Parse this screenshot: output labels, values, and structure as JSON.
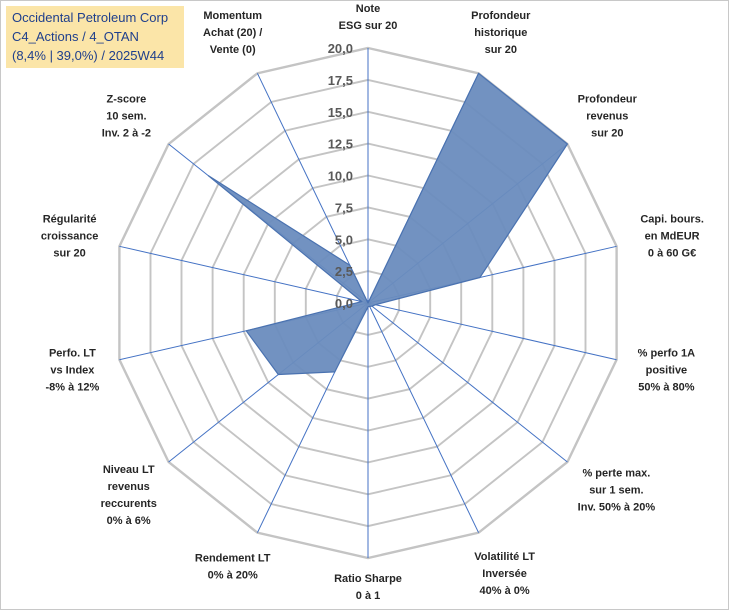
{
  "header": {
    "line1": "Occidental Petroleum Corp",
    "line2": "C4_Actions / 4_OTAN",
    "line3": "(8,4% | 39,0%) / 2025W44"
  },
  "colors": {
    "fill": "#6a8cbe",
    "stroke": "#4a72b0",
    "grid": "#c4c4c4",
    "spoke": "#4472c4",
    "header_bg": "#fbe5a8",
    "header_text": "#1f3f8c"
  },
  "chart_data": {
    "type": "radar",
    "title": "Occidental Petroleum Corp",
    "rmin": 0,
    "rmax": 20,
    "tick_step": 2.5,
    "tick_labels": [
      "0,0",
      "2,5",
      "5,0",
      "7,5",
      "10,0",
      "12,5",
      "15,0",
      "17,5",
      "20,0"
    ],
    "axes": [
      {
        "label": [
          "Note",
          "ESG sur 20"
        ],
        "value": 0
      },
      {
        "label": [
          "Profondeur",
          "historique",
          "sur 20"
        ],
        "value": 20
      },
      {
        "label": [
          "Profondeur",
          "revenus",
          "sur 20"
        ],
        "value": 20
      },
      {
        "label": [
          "Capi. bours.",
          "en MdEUR",
          "0 à 60 G€"
        ],
        "value": 9
      },
      {
        "label": [
          "% perfo 1A",
          "positive",
          "50% à 80%"
        ],
        "value": 0.6
      },
      {
        "label": [
          "% perte max.",
          "sur 1 sem.",
          "Inv. 50% à 20%"
        ],
        "value": 0.4
      },
      {
        "label": [
          "Volatilité LT",
          "Inversée",
          "40% à 0%"
        ],
        "value": 0.3
      },
      {
        "label": [
          "Ratio Sharpe",
          "0 à 1"
        ],
        "value": 0.3
      },
      {
        "label": [
          "Rendement LT",
          "0% à 20%"
        ],
        "value": 6
      },
      {
        "label": [
          "Niveau LT",
          "revenus",
          "reccurents",
          "0% à 6%"
        ],
        "value": 9
      },
      {
        "label": [
          "Perfo. LT",
          "vs Index",
          "-8% à 12%"
        ],
        "value": 9.8
      },
      {
        "label": [
          "Régularité",
          "croissance",
          "sur 20"
        ],
        "value": 0.5
      },
      {
        "label": [
          "Z-score",
          "10 sem.",
          "Inv. 2 à -2"
        ],
        "value": 16
      },
      {
        "label": [
          "Momentum",
          "Achat (20) /",
          "Vente (0)"
        ],
        "value": 3.3
      }
    ]
  }
}
